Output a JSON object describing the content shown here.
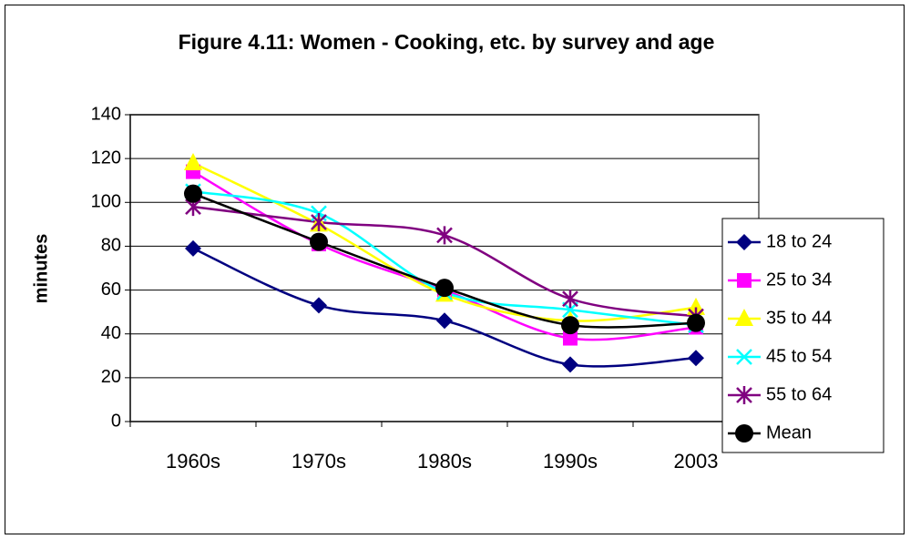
{
  "chart_data": {
    "type": "line",
    "title": "Figure 4.11: Women - Cooking, etc. by survey and age",
    "y_label": "minutes",
    "categories": [
      "1960s",
      "1970s",
      "1980s",
      "1990s",
      "2003"
    ],
    "series": [
      {
        "name": "18 to 24",
        "color": "#000080",
        "marker": "diamond",
        "values": [
          79,
          53,
          46,
          26,
          29
        ]
      },
      {
        "name": "25 to 34",
        "color": "#ff00ff",
        "marker": "square",
        "values": [
          114,
          81,
          60,
          38,
          43
        ]
      },
      {
        "name": "35 to 44",
        "color": "#ffff00",
        "marker": "triangle",
        "values": [
          118,
          90,
          58,
          46,
          52
        ]
      },
      {
        "name": "45 to 54",
        "color": "#00ffff",
        "marker": "x",
        "values": [
          105,
          95,
          59,
          51,
          44
        ]
      },
      {
        "name": "55 to 64",
        "color": "#800080",
        "marker": "star",
        "values": [
          98,
          91,
          85,
          56,
          48
        ]
      },
      {
        "name": "Mean",
        "color": "#000000",
        "marker": "circle",
        "values": [
          104,
          82,
          61,
          44,
          45
        ]
      }
    ],
    "ylim": [
      0,
      140
    ],
    "yticks": [
      0,
      20,
      40,
      60,
      80,
      100,
      120,
      140
    ],
    "grid": true,
    "legend": "right"
  }
}
